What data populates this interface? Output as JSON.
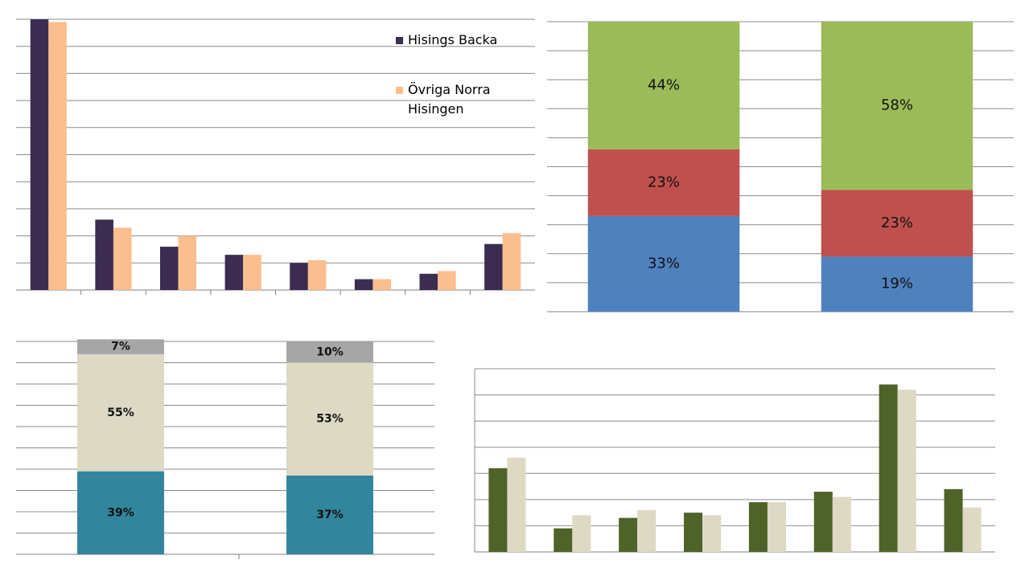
{
  "chart_data": [
    {
      "type": "bar",
      "stacked": false,
      "grid": true,
      "legend": "upper right",
      "categories": [
        null,
        null,
        null,
        null,
        null,
        null,
        null,
        null
      ],
      "ylim": [
        0,
        10
      ],
      "yticks": [
        0,
        1,
        2,
        3,
        4,
        5,
        6,
        7,
        8,
        9,
        10
      ],
      "series": [
        {
          "name": "Hisings Backa",
          "color": "#3b2c50",
          "values": [
            10.0,
            2.6,
            1.6,
            1.3,
            1.0,
            0.4,
            0.6,
            1.7
          ]
        },
        {
          "name": "Övriga Norra Hisingen",
          "color": "#fbbe8e",
          "values": [
            9.9,
            2.3,
            2.0,
            1.3,
            1.1,
            0.4,
            0.7,
            2.1
          ]
        }
      ]
    },
    {
      "type": "bar",
      "stacked": true,
      "grid": true,
      "categories": [
        null,
        null
      ],
      "ylim": [
        0,
        100
      ],
      "yticks": [
        0,
        10,
        20,
        30,
        40,
        50,
        60,
        70,
        80,
        90,
        100
      ],
      "series": [
        {
          "color": "#4f81bd",
          "values": [
            33,
            19
          ],
          "value_labels": [
            "33%",
            "19%"
          ]
        },
        {
          "color": "#c0504d",
          "values": [
            23,
            23
          ],
          "value_labels": [
            "23%",
            "23%"
          ]
        },
        {
          "color": "#9bbb59",
          "values": [
            44,
            58
          ],
          "value_labels": [
            "44%",
            "58%"
          ]
        }
      ]
    },
    {
      "type": "bar",
      "stacked": true,
      "grid": true,
      "categories": [
        null,
        null
      ],
      "ylim": [
        0,
        100
      ],
      "yticks": [
        0,
        10,
        20,
        30,
        40,
        50,
        60,
        70,
        80,
        90,
        100
      ],
      "series": [
        {
          "color": "#31859c",
          "values": [
            39,
            37
          ],
          "value_labels": [
            "39%",
            "37%"
          ]
        },
        {
          "color": "#ddd9c4",
          "values": [
            55,
            53
          ],
          "value_labels": [
            "55%",
            "53%"
          ]
        },
        {
          "color": "#a6a6a6",
          "values": [
            7,
            10
          ],
          "value_labels": [
            "7%",
            "10%"
          ]
        }
      ]
    },
    {
      "type": "bar",
      "stacked": false,
      "grid": true,
      "categories": [
        null,
        null,
        null,
        null,
        null,
        null,
        null,
        null
      ],
      "ylim": [
        0,
        7
      ],
      "yticks": [
        0,
        1,
        2,
        3,
        4,
        5,
        6,
        7
      ],
      "series": [
        {
          "color": "#4f6228",
          "values": [
            3.2,
            0.9,
            1.3,
            1.5,
            1.9,
            2.3,
            6.4,
            2.4
          ]
        },
        {
          "color": "#ddd9c4",
          "values": [
            3.6,
            1.4,
            1.6,
            1.4,
            1.9,
            2.1,
            6.2,
            1.7
          ]
        }
      ]
    }
  ]
}
